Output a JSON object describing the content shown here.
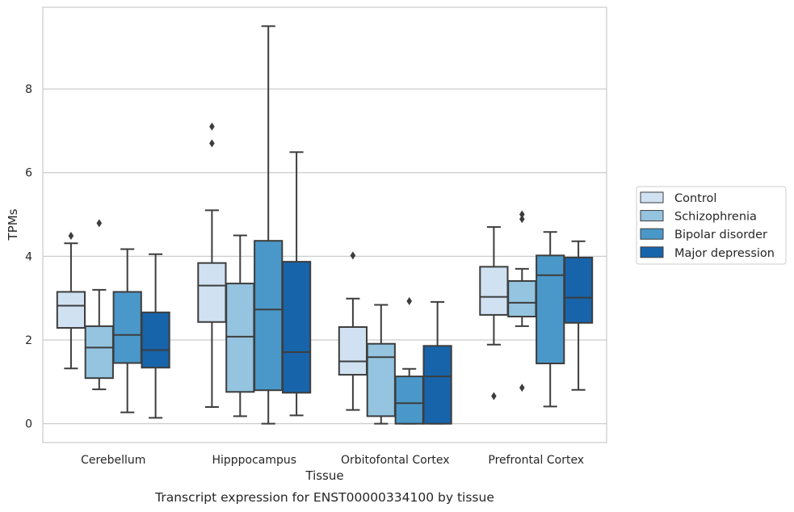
{
  "chart_data": {
    "type": "box",
    "caption": "Transcript expression for ENST00000334100 by tissue",
    "xlabel": "Tissue",
    "ylabel": "TPMs",
    "ylim": [
      -0.45,
      9.95
    ],
    "yticks": [
      0,
      2,
      4,
      6,
      8
    ],
    "ytick_labels": [
      "0",
      "2",
      "4",
      "6",
      "8"
    ],
    "grid": "horizontal",
    "legend_position": "right",
    "categories": [
      "Cerebellum",
      "Hipppocampus",
      "Orbitofontal Cortex",
      "Prefrontal Cortex"
    ],
    "series": [
      {
        "name": "Control",
        "color": "#d0e1f2",
        "boxes": [
          {
            "whislo": 1.32,
            "q1": 2.29,
            "med": 2.82,
            "q3": 3.15,
            "whishi": 4.31,
            "fliers": [
              4.49
            ]
          },
          {
            "whislo": 0.4,
            "q1": 2.43,
            "med": 3.3,
            "q3": 3.84,
            "whishi": 5.1,
            "fliers": [
              6.7,
              7.1
            ]
          },
          {
            "whislo": 0.33,
            "q1": 1.17,
            "med": 1.49,
            "q3": 2.31,
            "whishi": 2.99,
            "fliers": [
              4.02
            ]
          },
          {
            "whislo": 1.89,
            "q1": 2.6,
            "med": 3.03,
            "q3": 3.75,
            "whishi": 4.7,
            "fliers": [
              0.66
            ]
          }
        ]
      },
      {
        "name": "Schizophrenia",
        "color": "#94c4df",
        "boxes": [
          {
            "whislo": 0.82,
            "q1": 1.09,
            "med": 1.82,
            "q3": 2.33,
            "whishi": 3.2,
            "fliers": [
              4.79
            ]
          },
          {
            "whislo": 0.18,
            "q1": 0.76,
            "med": 2.08,
            "q3": 3.35,
            "whishi": 4.5,
            "fliers": []
          },
          {
            "whislo": 0.0,
            "q1": 0.18,
            "med": 1.59,
            "q3": 1.91,
            "whishi": 2.84,
            "fliers": []
          },
          {
            "whislo": 2.33,
            "q1": 2.56,
            "med": 2.89,
            "q3": 3.41,
            "whishi": 3.7,
            "fliers": [
              0.86,
              4.89,
              5.0
            ]
          }
        ]
      },
      {
        "name": "Bipolar disorder",
        "color": "#4a98c9",
        "boxes": [
          {
            "whislo": 0.27,
            "q1": 1.45,
            "med": 2.12,
            "q3": 3.15,
            "whishi": 4.17,
            "fliers": []
          },
          {
            "whislo": 0.0,
            "q1": 0.8,
            "med": 2.73,
            "q3": 4.37,
            "whishi": 9.5,
            "fliers": []
          },
          {
            "whislo": 0.0,
            "q1": 0.0,
            "med": 0.49,
            "q3": 1.13,
            "whishi": 1.31,
            "fliers": [
              2.93
            ]
          },
          {
            "whislo": 0.41,
            "q1": 1.44,
            "med": 3.55,
            "q3": 4.02,
            "whishi": 4.58,
            "fliers": []
          }
        ]
      },
      {
        "name": "Major depression",
        "color": "#1764ab",
        "boxes": [
          {
            "whislo": 0.14,
            "q1": 1.34,
            "med": 1.76,
            "q3": 2.66,
            "whishi": 4.05,
            "fliers": []
          },
          {
            "whislo": 0.2,
            "q1": 0.74,
            "med": 1.71,
            "q3": 3.87,
            "whishi": 6.49,
            "fliers": []
          },
          {
            "whislo": 0.0,
            "q1": 0.0,
            "med": 1.13,
            "q3": 1.86,
            "whishi": 2.91,
            "fliers": []
          },
          {
            "whislo": 0.81,
            "q1": 2.41,
            "med": 3.01,
            "q3": 3.97,
            "whishi": 4.36,
            "fliers": []
          }
        ]
      }
    ]
  }
}
